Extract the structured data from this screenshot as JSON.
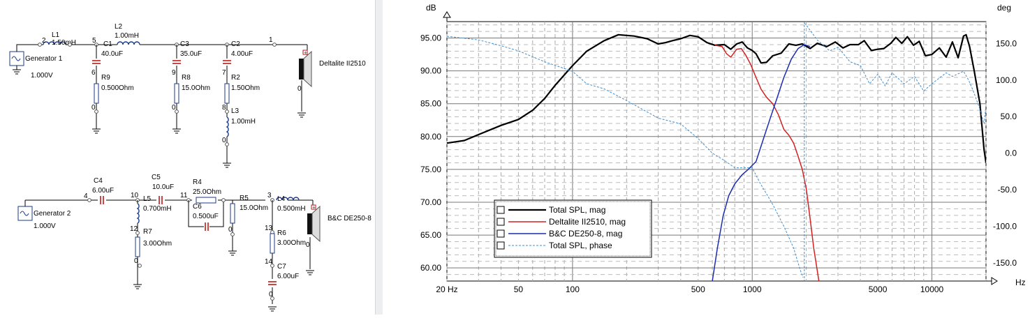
{
  "schematic": {
    "top": {
      "generator": {
        "name": "Generator 1",
        "voltage": "1.000V"
      },
      "nodes": {
        "n2": "2",
        "n5": "5",
        "n6": "6",
        "n0a": "0",
        "n9": "9",
        "n0b": "0",
        "n7": "7",
        "n8": "8",
        "n0c": "0",
        "n1": "1",
        "n0d": "0"
      },
      "L1": {
        "name": "L1",
        "value": "1.50mH"
      },
      "L2": {
        "name": "L2",
        "value": "1.00mH"
      },
      "C1": {
        "name": "C1",
        "value": "40.0uF"
      },
      "R9": {
        "name": "R9",
        "value": "0.500Ohm"
      },
      "C3": {
        "name": "C3",
        "value": "35.0uF"
      },
      "R8": {
        "name": "R8",
        "value": "15.0Ohm"
      },
      "C2": {
        "name": "C2",
        "value": "4.00uF"
      },
      "R2": {
        "name": "R2",
        "value": "1.50Ohm"
      },
      "L3": {
        "name": "L3",
        "value": "1.00mH"
      },
      "speaker": "Deltalite II2510"
    },
    "bottom": {
      "generator": {
        "name": "Generator 2",
        "voltage": "1.000V"
      },
      "nodes": {
        "n4": "4",
        "n10": "10",
        "n11": "11",
        "n12": "12",
        "n0a": "0",
        "n0b": "0",
        "n3": "3",
        "n13": "13",
        "n14": "14",
        "n0c": "0",
        "n0d": "0"
      },
      "C4": {
        "name": "C4",
        "value": "6.00uF"
      },
      "C5": {
        "name": "C5",
        "value": "10.0uF"
      },
      "L5": {
        "name": "L5",
        "value": "0.700mH"
      },
      "R4": {
        "name": "R4",
        "value": "25.0Ohm"
      },
      "C6": {
        "name": "C6",
        "value": "0.500uF"
      },
      "R5": {
        "name": "R5",
        "value": "15.0Ohm"
      },
      "L4": {
        "name": "L4",
        "value": "0.500mH"
      },
      "R7": {
        "name": "R7",
        "value": "3.00Ohm"
      },
      "R6": {
        "name": "R6",
        "value": "3.00Ohm"
      },
      "C7": {
        "name": "C7",
        "value": "6.00uF"
      },
      "speaker": "B&C DE250-8"
    }
  },
  "chart_data": {
    "type": "line",
    "xscale": "log",
    "xlim": [
      20,
      20000
    ],
    "ylim": [
      58,
      97.5
    ],
    "y2lim": [
      -175,
      180
    ],
    "ylabel": "dB",
    "y2label": "deg",
    "xunit": "Hz",
    "xticks": [
      {
        "value": 20,
        "label": "20 Hz"
      },
      {
        "value": 50,
        "label": "50"
      },
      {
        "value": 100,
        "label": "100"
      },
      {
        "value": 500,
        "label": "500"
      },
      {
        "value": 1000,
        "label": "1000"
      },
      {
        "value": 5000,
        "label": "5000"
      },
      {
        "value": 10000,
        "label": "10000"
      }
    ],
    "yticks": [
      {
        "value": 95,
        "label": "95.00"
      },
      {
        "value": 90,
        "label": "90.00"
      },
      {
        "value": 85,
        "label": "85.00"
      },
      {
        "value": 80,
        "label": "80.00"
      },
      {
        "value": 75,
        "label": "75.00"
      },
      {
        "value": 70,
        "label": "70.00"
      },
      {
        "value": 65,
        "label": "65.00"
      },
      {
        "value": 60,
        "label": "60.00"
      }
    ],
    "y2ticks": [
      {
        "value": 150,
        "label": "150.0"
      },
      {
        "value": 100,
        "label": "100.0"
      },
      {
        "value": 50,
        "label": "50.0"
      },
      {
        "value": 0,
        "label": "0.0"
      },
      {
        "value": -50,
        "label": "-50.0"
      },
      {
        "value": -100,
        "label": "-100.0"
      },
      {
        "value": -150,
        "label": "-150.0"
      }
    ],
    "legend_position": "bottom-left",
    "series": [
      {
        "name": "Total SPL, mag",
        "color": "#000000",
        "width": 2.2,
        "dash": "",
        "axis": "left",
        "points": [
          [
            20,
            79.0
          ],
          [
            25,
            79.4
          ],
          [
            30,
            80.3
          ],
          [
            40,
            81.7
          ],
          [
            50,
            82.6
          ],
          [
            60,
            84.0
          ],
          [
            70,
            85.8
          ],
          [
            80,
            87.8
          ],
          [
            100,
            90.8
          ],
          [
            120,
            93.0
          ],
          [
            150,
            94.6
          ],
          [
            180,
            95.5
          ],
          [
            220,
            95.3
          ],
          [
            260,
            94.9
          ],
          [
            300,
            94.1
          ],
          [
            330,
            94.3
          ],
          [
            360,
            94.6
          ],
          [
            400,
            94.9
          ],
          [
            450,
            95.4
          ],
          [
            500,
            95.2
          ],
          [
            560,
            94.3
          ],
          [
            620,
            93.9
          ],
          [
            700,
            94.0
          ],
          [
            760,
            93.3
          ],
          [
            820,
            94.1
          ],
          [
            880,
            94.4
          ],
          [
            940,
            93.5
          ],
          [
            1000,
            93.1
          ],
          [
            1050,
            92.6
          ],
          [
            1120,
            91.2
          ],
          [
            1200,
            91.3
          ],
          [
            1300,
            92.3
          ],
          [
            1450,
            92.7
          ],
          [
            1600,
            94.1
          ],
          [
            1750,
            93.9
          ],
          [
            1900,
            94.1
          ],
          [
            2100,
            93.4
          ],
          [
            2300,
            94.2
          ],
          [
            2600,
            93.7
          ],
          [
            2900,
            94.4
          ],
          [
            3200,
            93.5
          ],
          [
            3500,
            94.0
          ],
          [
            3900,
            94.0
          ],
          [
            4200,
            94.6
          ],
          [
            4600,
            93.1
          ],
          [
            5000,
            93.3
          ],
          [
            5400,
            93.4
          ],
          [
            5900,
            94.2
          ],
          [
            6300,
            95.1
          ],
          [
            6800,
            94.2
          ],
          [
            7300,
            95.2
          ],
          [
            7900,
            93.9
          ],
          [
            8500,
            94.5
          ],
          [
            9200,
            92.3
          ],
          [
            10000,
            92.5
          ],
          [
            11000,
            93.5
          ],
          [
            12000,
            92.1
          ],
          [
            13000,
            94.4
          ],
          [
            14000,
            92.0
          ],
          [
            15000,
            95.3
          ],
          [
            15500,
            95.5
          ],
          [
            16200,
            93.7
          ],
          [
            17200,
            90.0
          ],
          [
            18500,
            85.0
          ],
          [
            19500,
            78.0
          ],
          [
            20000,
            76.0
          ]
        ]
      },
      {
        "name": "Deltalite II2510, mag",
        "color": "#d42020",
        "width": 1.5,
        "dash": "",
        "axis": "left",
        "points": [
          [
            620,
            93.9
          ],
          [
            680,
            93.7
          ],
          [
            720,
            92.6
          ],
          [
            760,
            92.1
          ],
          [
            820,
            93.3
          ],
          [
            870,
            93.4
          ],
          [
            920,
            92.4
          ],
          [
            980,
            91.0
          ],
          [
            1050,
            89.0
          ],
          [
            1120,
            87.2
          ],
          [
            1200,
            86.0
          ],
          [
            1300,
            85.0
          ],
          [
            1400,
            83.3
          ],
          [
            1500,
            81.1
          ],
          [
            1600,
            80.2
          ],
          [
            1700,
            79.0
          ],
          [
            1800,
            77.0
          ],
          [
            1900,
            75.0
          ],
          [
            2000,
            72.0
          ],
          [
            2100,
            67.5
          ],
          [
            2200,
            63.0
          ],
          [
            2350,
            58.0
          ]
        ]
      },
      {
        "name": "B&C DE250-8, mag",
        "color": "#1a2cb0",
        "width": 1.5,
        "dash": "",
        "axis": "left",
        "points": [
          [
            600,
            58.0
          ],
          [
            640,
            63.0
          ],
          [
            690,
            68.0
          ],
          [
            740,
            71.0
          ],
          [
            800,
            72.8
          ],
          [
            880,
            74.2
          ],
          [
            950,
            75.0
          ],
          [
            1050,
            76.2
          ],
          [
            1150,
            79.5
          ],
          [
            1250,
            82.5
          ],
          [
            1380,
            86.0
          ],
          [
            1500,
            89.0
          ],
          [
            1650,
            91.8
          ],
          [
            1800,
            93.4
          ],
          [
            1950,
            94.0
          ],
          [
            2100,
            93.7
          ]
        ]
      },
      {
        "name": "Total SPL, phase",
        "color": "#3f8fd0",
        "width": 1.0,
        "dash": "3,2",
        "axis": "right",
        "points": [
          [
            20,
            160
          ],
          [
            30,
            155
          ],
          [
            40,
            147
          ],
          [
            50,
            140
          ],
          [
            70,
            125
          ],
          [
            100,
            112
          ],
          [
            120,
            95
          ],
          [
            150,
            88
          ],
          [
            200,
            72
          ],
          [
            300,
            48
          ],
          [
            400,
            40
          ],
          [
            500,
            20
          ],
          [
            600,
            0
          ],
          [
            700,
            -10
          ],
          [
            800,
            -20
          ],
          [
            900,
            -20
          ],
          [
            1000,
            -20
          ],
          [
            1100,
            -40
          ],
          [
            1300,
            -70
          ],
          [
            1500,
            -100
          ],
          [
            1700,
            -130
          ],
          [
            1850,
            -160
          ],
          [
            1920,
            -170
          ],
          [
            1950,
            178
          ],
          [
            2000,
            175
          ],
          [
            2300,
            155
          ],
          [
            2700,
            140
          ],
          [
            3000,
            145
          ],
          [
            3500,
            125
          ],
          [
            4000,
            120
          ],
          [
            4500,
            95
          ],
          [
            5000,
            108
          ],
          [
            5500,
            92
          ],
          [
            6000,
            110
          ],
          [
            7000,
            95
          ],
          [
            8000,
            105
          ],
          [
            9000,
            85
          ],
          [
            10000,
            95
          ],
          [
            12000,
            110
          ],
          [
            13000,
            105
          ],
          [
            15000,
            112
          ],
          [
            16000,
            100
          ],
          [
            17000,
            85
          ],
          [
            18500,
            60
          ],
          [
            19500,
            40
          ],
          [
            20000,
            65
          ]
        ]
      }
    ]
  }
}
